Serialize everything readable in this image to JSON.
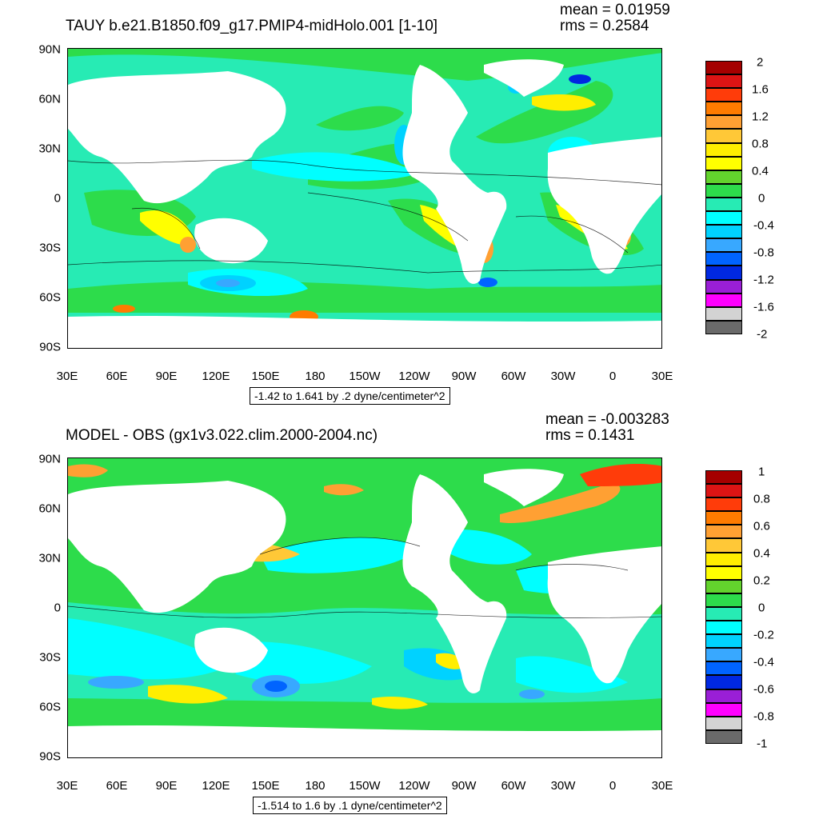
{
  "panels": [
    {
      "title": "TAUY b.e21.B1850.f09_g17.PMIP4-midHolo.001 [1-10]",
      "mean": "mean = 0.01959",
      "rms": "rms = 0.2584",
      "info": "-1.42 to 1.641 by .2 dyne/centimeter^2",
      "colorbar_labels": [
        "2",
        "1.6",
        "1.2",
        "0.8",
        "0.4",
        "0",
        "-0.4",
        "-0.8",
        "-1.2",
        "-1.6",
        "-2"
      ],
      "colorbar_colors": [
        "#a50000",
        "#dc1414",
        "#ff3c0a",
        "#ff7b00",
        "#ffa033",
        "#ffc837",
        "#ffee00",
        "#ffff00",
        "#63d32d",
        "#2ddc4b",
        "#27ebb4",
        "#00ffff",
        "#00d2ff",
        "#38a8ff",
        "#0064ff",
        "#0028e1",
        "#9a1fd6",
        "#ff00ff",
        "#d3d3d3",
        "#6a6a6a"
      ]
    },
    {
      "title": "MODEL - OBS (gx1v3.022.clim.2000-2004.nc)",
      "mean": "mean = -0.003283",
      "rms": "rms = 0.1431",
      "info": "-1.514 to 1.6 by .1 dyne/centimeter^2",
      "colorbar_labels": [
        "1",
        "0.8",
        "0.6",
        "0.4",
        "0.2",
        "0",
        "-0.2",
        "-0.4",
        "-0.6",
        "-0.8",
        "-1"
      ],
      "colorbar_colors": [
        "#a50000",
        "#dc1414",
        "#ff3c0a",
        "#ff7b00",
        "#ffa033",
        "#ffc837",
        "#ffee00",
        "#ffff00",
        "#63d32d",
        "#2ddc4b",
        "#27ebb4",
        "#00ffff",
        "#00d2ff",
        "#38a8ff",
        "#0064ff",
        "#0028e1",
        "#9a1fd6",
        "#ff00ff",
        "#d3d3d3",
        "#6a6a6a"
      ]
    }
  ],
  "lat_labels": [
    "90N",
    "60N",
    "30N",
    "0",
    "30S",
    "60S",
    "90S"
  ],
  "lon_labels": [
    "30E",
    "60E",
    "90E",
    "120E",
    "150E",
    "180",
    "150W",
    "120W",
    "90W",
    "60W",
    "30W",
    "0",
    "30E"
  ]
}
